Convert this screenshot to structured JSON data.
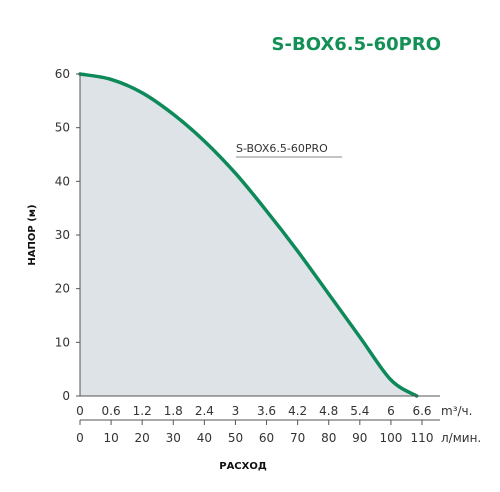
{
  "chart_data": {
    "type": "area",
    "title": "S-BOX6.5-60PRO",
    "ylabel": "НАПОР (м)",
    "xlabel": "РАСХОД",
    "ylim": [
      0,
      60
    ],
    "yticks": [
      "0",
      "10",
      "20",
      "30",
      "40",
      "50",
      "60"
    ],
    "x_m3h": {
      "range": [
        0,
        6.6
      ],
      "ticks": [
        "0",
        "0.6",
        "1.2",
        "1.8",
        "2.4",
        "3",
        "3.6",
        "4.2",
        "4.8",
        "5.4",
        "6",
        "6.6"
      ],
      "unit": "m³/ч."
    },
    "x_lmin": {
      "range": [
        0,
        110
      ],
      "ticks": [
        "0",
        "10",
        "20",
        "30",
        "40",
        "50",
        "60",
        "70",
        "80",
        "90",
        "100",
        "110"
      ],
      "unit": "л/мин."
    },
    "series": [
      {
        "name": "S-BOX6.5-60PRO",
        "color": "#0e8a5a",
        "fill": "#dde3e6",
        "x": [
          0,
          0.6,
          1.2,
          1.8,
          2.4,
          3.0,
          3.6,
          4.2,
          4.8,
          5.4,
          6.0,
          6.5
        ],
        "y": [
          60,
          59,
          56.5,
          52.5,
          47.5,
          41.5,
          34.5,
          27,
          19,
          11,
          3,
          0
        ]
      }
    ],
    "grid": false,
    "legend": "annotation-top-center"
  },
  "colors": {
    "title": "#129055",
    "axis": "#444444",
    "curve": "#0e8a5a",
    "fill": "#dde3e6"
  }
}
